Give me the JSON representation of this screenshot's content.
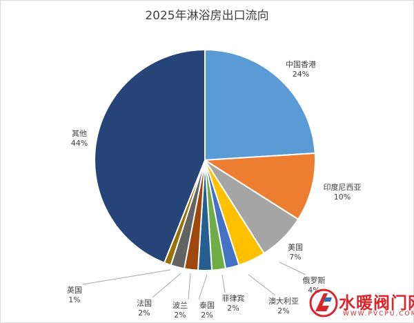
{
  "chart_data": {
    "type": "pie",
    "title": "2025年淋浴房出口流向",
    "slices": [
      {
        "label": "中国香港",
        "value": 24,
        "display": "24%",
        "color": "#5b9bd5"
      },
      {
        "label": "印度尼西亚",
        "value": 10,
        "display": "10%",
        "color": "#ed7d31"
      },
      {
        "label": "美国",
        "value": 7,
        "display": "7%",
        "color": "#a5a5a5"
      },
      {
        "label": "俄罗斯",
        "value": 4,
        "display": "4%",
        "color": "#ffc000"
      },
      {
        "label": "澳大利亚",
        "value": 2,
        "display": "2%",
        "color": "#4472c4"
      },
      {
        "label": "菲律宾",
        "value": 2,
        "display": "2%",
        "color": "#70ad47"
      },
      {
        "label": "泰国",
        "value": 2,
        "display": "2%",
        "color": "#255e91"
      },
      {
        "label": "波兰",
        "value": 2,
        "display": "2%",
        "color": "#9e480e"
      },
      {
        "label": "法国",
        "value": 2,
        "display": "2%",
        "color": "#636363"
      },
      {
        "label": "英国",
        "value": 1,
        "display": "1%",
        "color": "#997300"
      },
      {
        "label": "其他",
        "value": 44,
        "display": "44%",
        "color": "#264478"
      }
    ]
  },
  "watermark": {
    "text": "水暖阀门网",
    "url": "WWW.PVCPU.COM",
    "color": "#d9262d"
  }
}
